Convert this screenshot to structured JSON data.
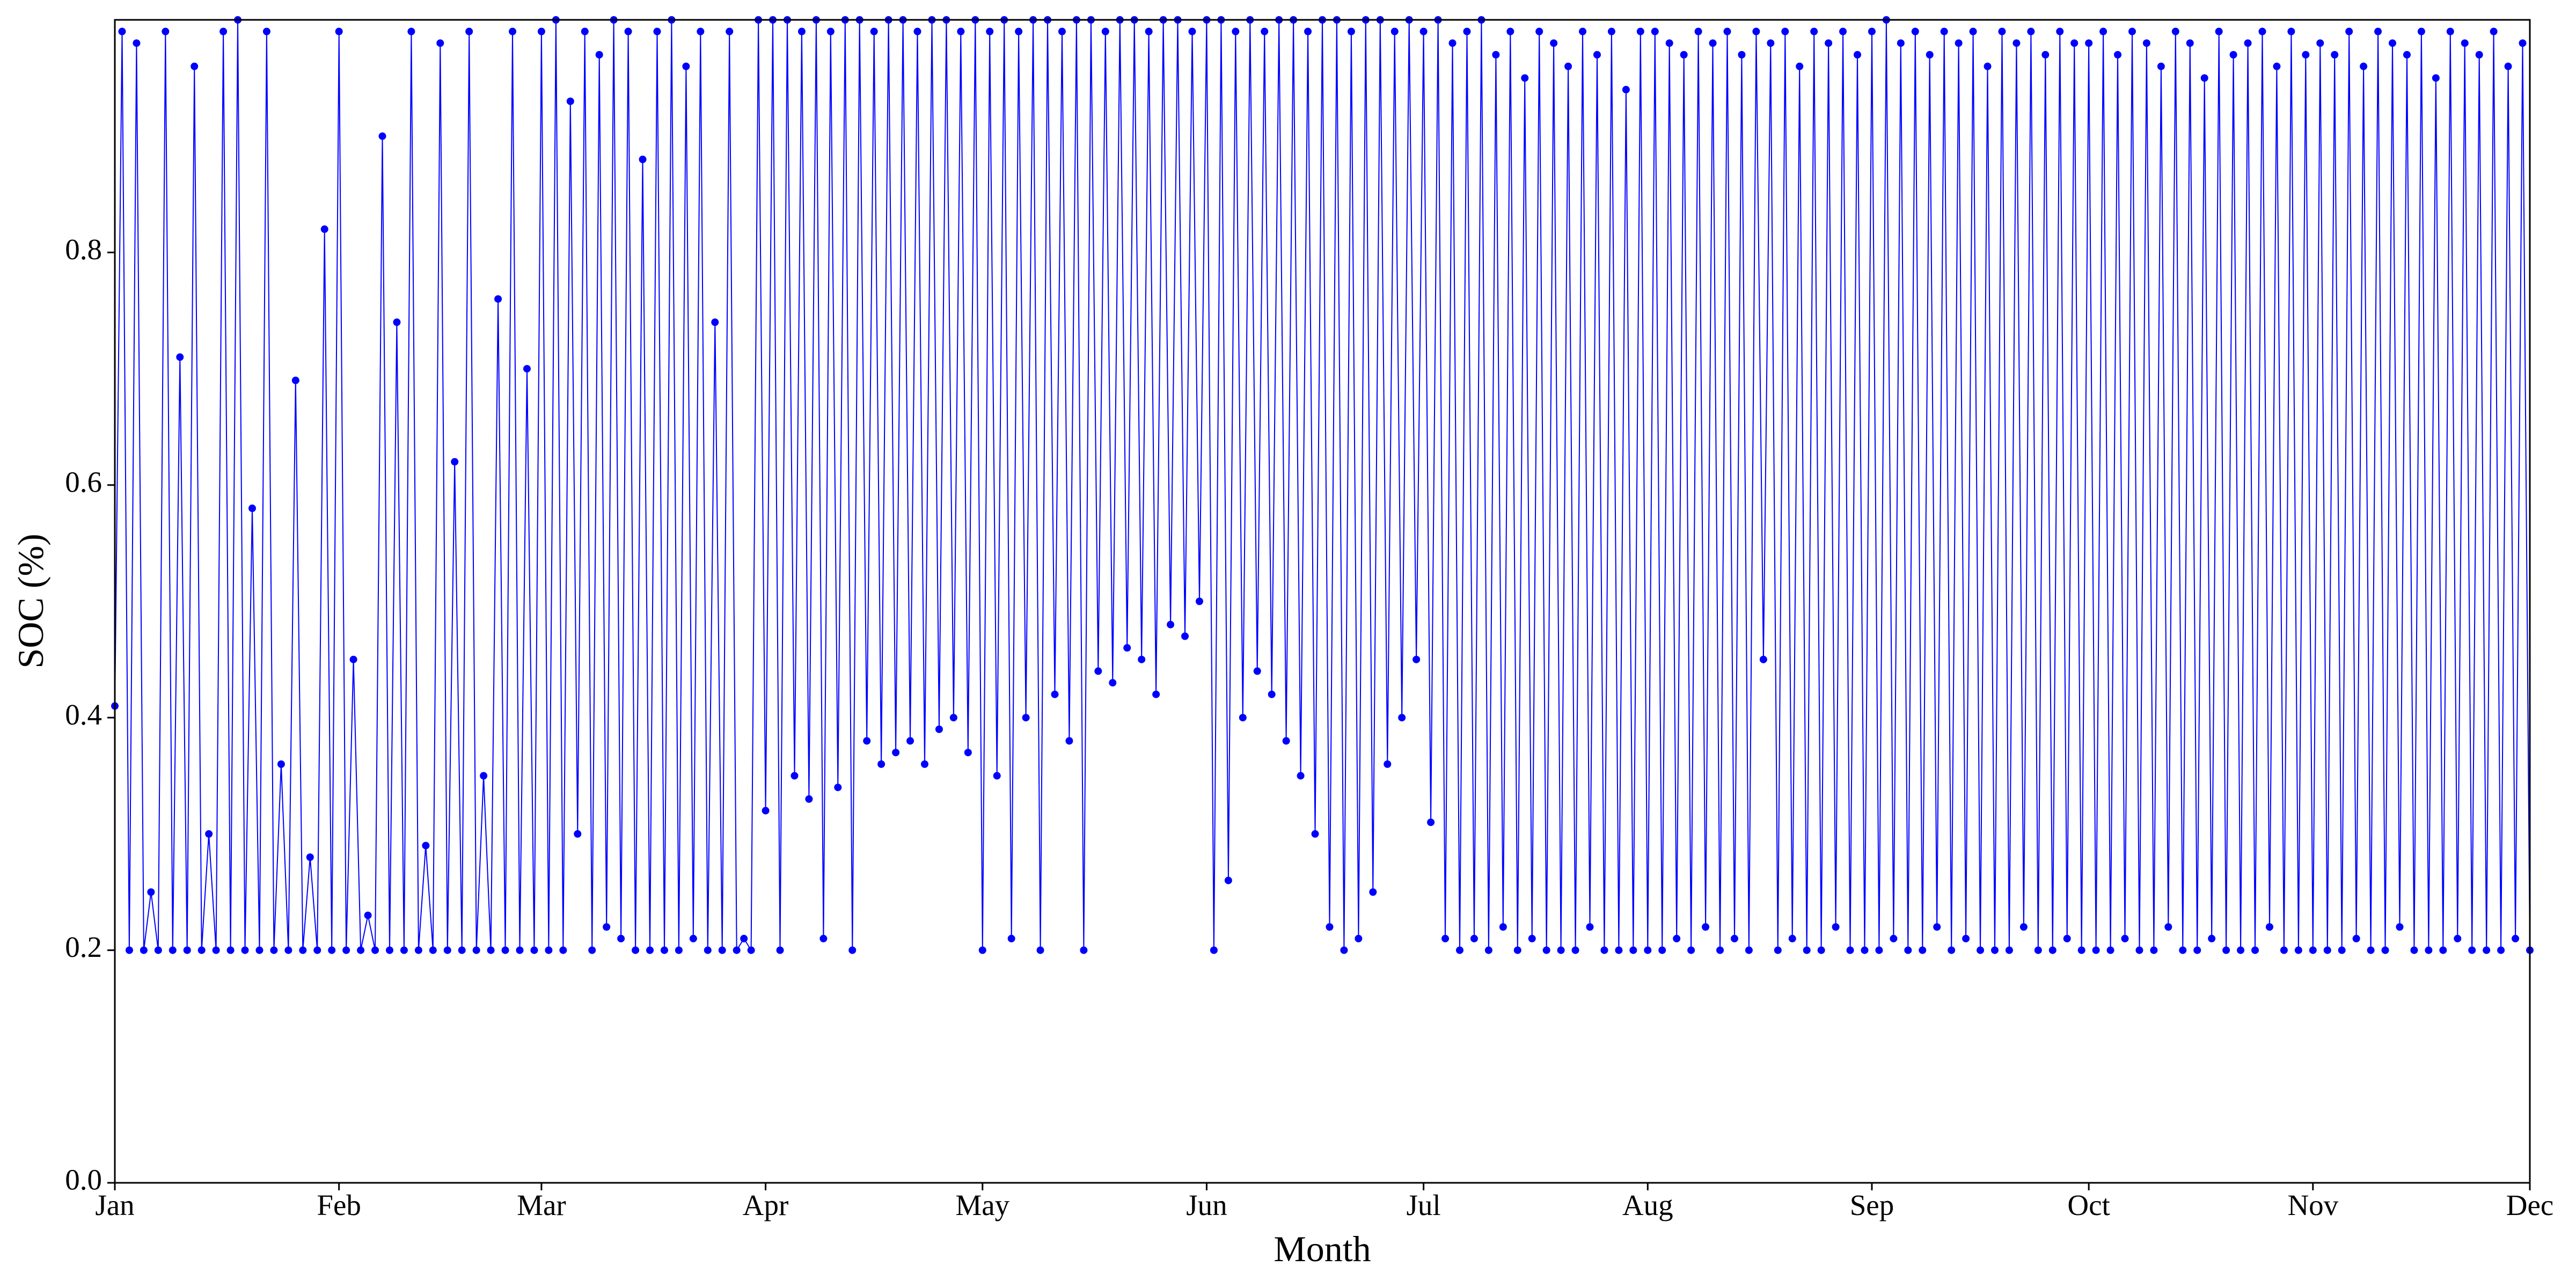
{
  "chart_data": {
    "type": "line",
    "x_label": "Month",
    "y_label": "SOC (%)",
    "color": "#0000ff",
    "xlim": [
      0,
      334
    ],
    "xticks": [
      {
        "value": 0,
        "label": "Jan"
      },
      {
        "value": 31,
        "label": "Feb"
      },
      {
        "value": 59,
        "label": "Mar"
      },
      {
        "value": 90,
        "label": "Apr"
      },
      {
        "value": 120,
        "label": "May"
      },
      {
        "value": 151,
        "label": "Jun"
      },
      {
        "value": 181,
        "label": "Jul"
      },
      {
        "value": 212,
        "label": "Aug"
      },
      {
        "value": 243,
        "label": "Sep"
      },
      {
        "value": 273,
        "label": "Oct"
      },
      {
        "value": 304,
        "label": "Nov"
      },
      {
        "value": 334,
        "label": "Dec"
      }
    ],
    "ylim": [
      0,
      1
    ],
    "yticks": [
      {
        "value": 0,
        "label": "0.0"
      },
      0.2,
      0.4,
      0.6,
      0.8
    ],
    "x": [
      0,
      1,
      2,
      3,
      4,
      5,
      6,
      7,
      8,
      9,
      10,
      11,
      12,
      13,
      14,
      15,
      16,
      17,
      18,
      19,
      20,
      21,
      22,
      23,
      24,
      25,
      26,
      27,
      28,
      29,
      30,
      31,
      32,
      33,
      34,
      35,
      36,
      37,
      38,
      39,
      40,
      41,
      42,
      43,
      44,
      45,
      46,
      47,
      48,
      49,
      50,
      51,
      52,
      53,
      54,
      55,
      56,
      57,
      58,
      59,
      60,
      61,
      62,
      63,
      64,
      65,
      66,
      67,
      68,
      69,
      70,
      71,
      72,
      73,
      74,
      75,
      76,
      77,
      78,
      79,
      80,
      81,
      82,
      83,
      84,
      85,
      86,
      87,
      88,
      89,
      90,
      91,
      92,
      93,
      94,
      95,
      96,
      97,
      98,
      99,
      100,
      101,
      102,
      103,
      104,
      105,
      106,
      107,
      108,
      109,
      110,
      111,
      112,
      113,
      114,
      115,
      116,
      117,
      118,
      119,
      120,
      121,
      122,
      123,
      124,
      125,
      126,
      127,
      128,
      129,
      130,
      131,
      132,
      133,
      134,
      135,
      136,
      137,
      138,
      139,
      140,
      141,
      142,
      143,
      144,
      145,
      146,
      147,
      148,
      149,
      150,
      151,
      152,
      153,
      154,
      155,
      156,
      157,
      158,
      159,
      160,
      161,
      162,
      163,
      164,
      165,
      166,
      167,
      168,
      169,
      170,
      171,
      172,
      173,
      174,
      175,
      176,
      177,
      178,
      179,
      180,
      181,
      182,
      183,
      184,
      185,
      186,
      187,
      188,
      189,
      190,
      191,
      192,
      193,
      194,
      195,
      196,
      197,
      198,
      199,
      200,
      201,
      202,
      203,
      204,
      205,
      206,
      207,
      208,
      209,
      210,
      211,
      212,
      213,
      214,
      215,
      216,
      217,
      218,
      219,
      220,
      221,
      222,
      223,
      224,
      225,
      226,
      227,
      228,
      229,
      230,
      231,
      232,
      233,
      234,
      235,
      236,
      237,
      238,
      239,
      240,
      241,
      242,
      243,
      244,
      245,
      246,
      247,
      248,
      249,
      250,
      251,
      252,
      253,
      254,
      255,
      256,
      257,
      258,
      259,
      260,
      261,
      262,
      263,
      264,
      265,
      266,
      267,
      268,
      269,
      270,
      271,
      272,
      273,
      274,
      275,
      276,
      277,
      278,
      279,
      280,
      281,
      282,
      283,
      284,
      285,
      286,
      287,
      288,
      289,
      290,
      291,
      292,
      293,
      294,
      295,
      296,
      297,
      298,
      299,
      300,
      301,
      302,
      303,
      304,
      305,
      306,
      307,
      308,
      309,
      310,
      311,
      312,
      313,
      314,
      315,
      316,
      317,
      318,
      319,
      320,
      321,
      322,
      323,
      324,
      325,
      326,
      327,
      328,
      329,
      330,
      331,
      332,
      333,
      334
    ],
    "values": [
      0.41,
      0.99,
      0.2,
      0.98,
      0.2,
      0.25,
      0.2,
      0.99,
      0.2,
      0.71,
      0.2,
      0.96,
      0.2,
      0.3,
      0.2,
      0.99,
      0.2,
      1.0,
      0.2,
      0.58,
      0.2,
      0.99,
      0.2,
      0.36,
      0.2,
      0.69,
      0.2,
      0.28,
      0.2,
      0.82,
      0.2,
      0.99,
      0.2,
      0.45,
      0.2,
      0.23,
      0.2,
      0.9,
      0.2,
      0.74,
      0.2,
      0.99,
      0.2,
      0.29,
      0.2,
      0.98,
      0.2,
      0.62,
      0.2,
      0.99,
      0.2,
      0.35,
      0.2,
      0.76,
      0.2,
      0.99,
      0.2,
      0.7,
      0.2,
      0.99,
      0.2,
      1.0,
      0.2,
      0.93,
      0.3,
      0.99,
      0.2,
      0.97,
      0.22,
      1.0,
      0.21,
      0.99,
      0.2,
      0.88,
      0.2,
      0.99,
      0.2,
      1.0,
      0.2,
      0.96,
      0.21,
      0.99,
      0.2,
      0.74,
      0.2,
      0.99,
      0.2,
      0.21,
      0.2,
      1.0,
      0.32,
      1.0,
      0.2,
      1.0,
      0.35,
      0.99,
      0.33,
      1.0,
      0.21,
      0.99,
      0.34,
      1.0,
      0.2,
      1.0,
      0.38,
      0.99,
      0.36,
      1.0,
      0.37,
      1.0,
      0.38,
      0.99,
      0.36,
      1.0,
      0.39,
      1.0,
      0.4,
      0.99,
      0.37,
      1.0,
      0.2,
      0.99,
      0.35,
      1.0,
      0.21,
      0.99,
      0.4,
      1.0,
      0.2,
      1.0,
      0.42,
      0.99,
      0.38,
      1.0,
      0.2,
      1.0,
      0.44,
      0.99,
      0.43,
      1.0,
      0.46,
      1.0,
      0.45,
      0.99,
      0.42,
      1.0,
      0.48,
      1.0,
      0.47,
      0.99,
      0.5,
      1.0,
      0.2,
      1.0,
      0.26,
      0.99,
      0.4,
      1.0,
      0.44,
      0.99,
      0.42,
      1.0,
      0.38,
      1.0,
      0.35,
      0.99,
      0.3,
      1.0,
      0.22,
      1.0,
      0.2,
      0.99,
      0.21,
      1.0,
      0.25,
      1.0,
      0.36,
      0.99,
      0.4,
      1.0,
      0.45,
      0.99,
      0.31,
      1.0,
      0.21,
      0.98,
      0.2,
      0.99,
      0.21,
      1.0,
      0.2,
      0.97,
      0.22,
      0.99,
      0.2,
      0.95,
      0.21,
      0.99,
      0.2,
      0.98,
      0.2,
      0.96,
      0.2,
      0.99,
      0.22,
      0.97,
      0.2,
      0.99,
      0.2,
      0.94,
      0.2,
      0.99,
      0.2,
      0.99,
      0.2,
      0.98,
      0.21,
      0.97,
      0.2,
      0.99,
      0.22,
      0.98,
      0.2,
      0.99,
      0.21,
      0.97,
      0.2,
      0.99,
      0.45,
      0.98,
      0.2,
      0.99,
      0.21,
      0.96,
      0.2,
      0.99,
      0.2,
      0.98,
      0.22,
      0.99,
      0.2,
      0.97,
      0.2,
      0.99,
      0.2,
      1.0,
      0.21,
      0.98,
      0.2,
      0.99,
      0.2,
      0.97,
      0.22,
      0.99,
      0.2,
      0.98,
      0.21,
      0.99,
      0.2,
      0.96,
      0.2,
      0.99,
      0.2,
      0.98,
      0.22,
      0.99,
      0.2,
      0.97,
      0.2,
      0.99,
      0.21,
      0.98,
      0.2,
      0.98,
      0.2,
      0.99,
      0.2,
      0.97,
      0.21,
      0.99,
      0.2,
      0.98,
      0.2,
      0.96,
      0.22,
      0.99,
      0.2,
      0.98,
      0.2,
      0.95,
      0.21,
      0.99,
      0.2,
      0.97,
      0.2,
      0.98,
      0.2,
      0.99,
      0.22,
      0.96,
      0.2,
      0.99,
      0.2,
      0.97,
      0.2,
      0.98,
      0.2,
      0.97,
      0.2,
      0.99,
      0.21,
      0.96,
      0.2,
      0.99,
      0.2,
      0.98,
      0.22,
      0.97,
      0.2,
      0.99,
      0.2,
      0.95,
      0.2,
      0.99,
      0.21,
      0.98,
      0.2,
      0.97,
      0.2,
      0.99,
      0.2,
      0.96,
      0.21,
      0.98,
      0.2
    ]
  }
}
